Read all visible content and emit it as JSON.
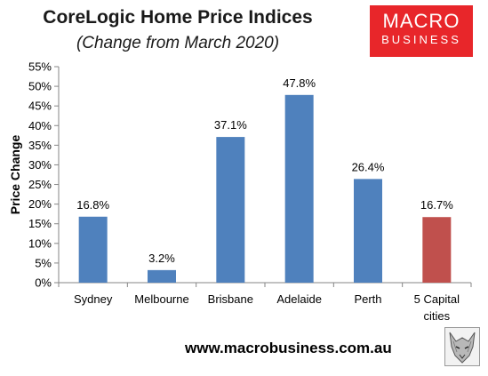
{
  "header": {
    "title": "CoreLogic Home Price Indices",
    "subtitle": "(Change from March 2020)"
  },
  "logo": {
    "line1": "MACRO",
    "line2": "BUSINESS",
    "color": "#e8262a"
  },
  "footer": {
    "url": "www.macrobusiness.com.au",
    "icon": "wolf-icon"
  },
  "chart_data": {
    "type": "bar",
    "title": "CoreLogic Home Price Indices",
    "subtitle": "(Change from March 2020)",
    "ylabel": "Price Change",
    "xlabel": "",
    "ylim": [
      0,
      55
    ],
    "yticks": [
      0,
      5,
      10,
      15,
      20,
      25,
      30,
      35,
      40,
      45,
      50,
      55
    ],
    "ytick_labels": [
      "0%",
      "5%",
      "10%",
      "15%",
      "20%",
      "25%",
      "30%",
      "35%",
      "40%",
      "45%",
      "50%",
      "55%"
    ],
    "categories": [
      [
        "Sydney"
      ],
      [
        "Melbourne"
      ],
      [
        "Brisbane"
      ],
      [
        "Adelaide"
      ],
      [
        "Perth"
      ],
      [
        "5 Capital",
        "cities"
      ]
    ],
    "values": [
      16.8,
      3.2,
      37.1,
      47.8,
      26.4,
      16.7
    ],
    "data_labels": [
      "16.8%",
      "3.2%",
      "37.1%",
      "47.8%",
      "26.4%",
      "16.7%"
    ],
    "colors": [
      "#4f81bd",
      "#4f81bd",
      "#4f81bd",
      "#4f81bd",
      "#4f81bd",
      "#c0504d"
    ],
    "grid": false,
    "legend": "none"
  }
}
